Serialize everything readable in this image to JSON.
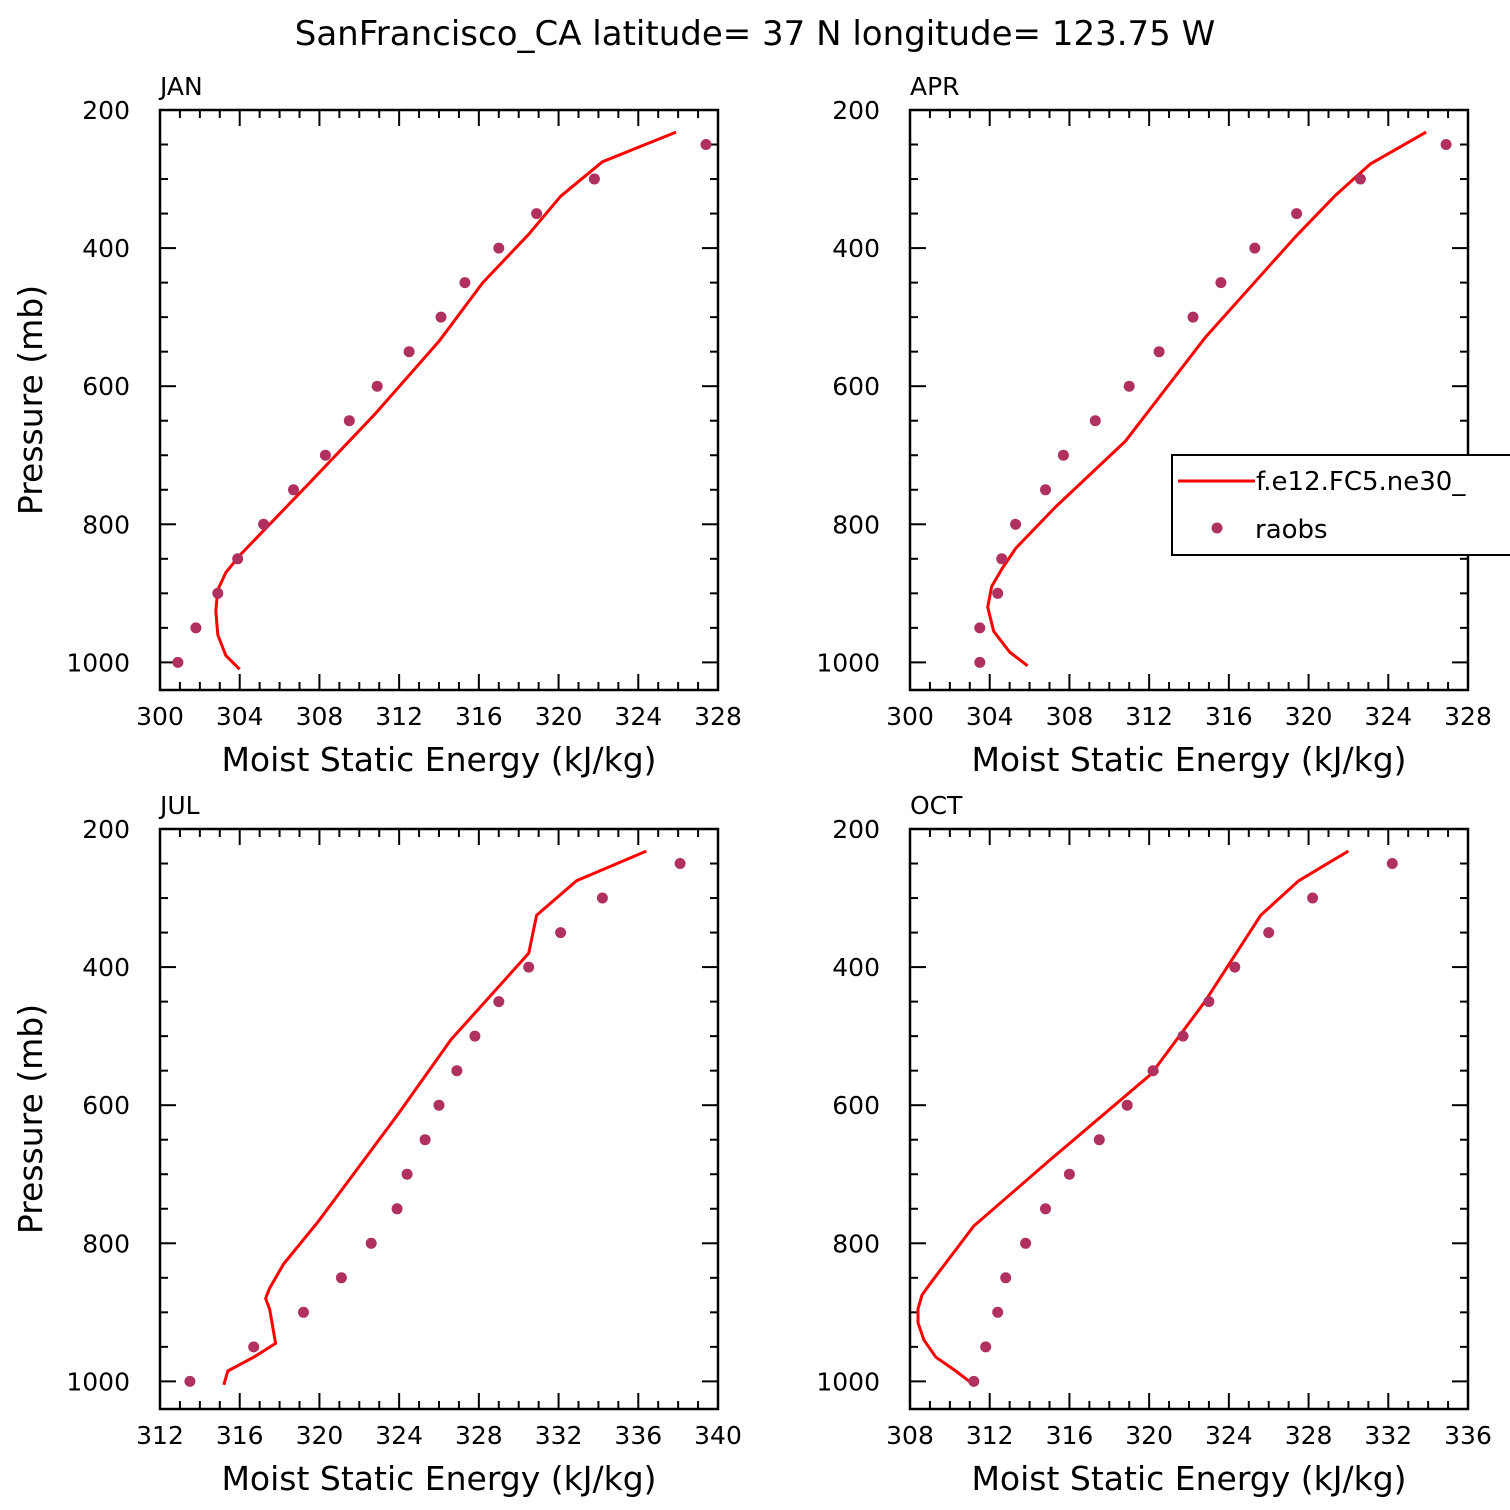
{
  "title": "SanFrancisco_CA  latitude= 37 N longitude= 123.75 W",
  "colors": {
    "model": "#ff0000",
    "obs": "#b03060",
    "axis": "#000000"
  },
  "legend": {
    "model_label": "f.e12.FC5.ne30_",
    "obs_label": "raobs",
    "placement": "right, within APR panel"
  },
  "chart_data": [
    {
      "type": "line",
      "panel_title": "JAN",
      "xlabel": "Moist Static Energy (kJ/kg)",
      "ylabel": "Pressure (mb)",
      "xlim": [
        300,
        328
      ],
      "ylim": [
        200,
        1040
      ],
      "y_inverted": true,
      "xticks": [
        "300",
        "304",
        "308",
        "312",
        "316",
        "320",
        "324",
        "328"
      ],
      "yticks": [
        "200",
        "400",
        "600",
        "800",
        "1000"
      ],
      "series": [
        {
          "name": "f.e12.FC5.ne30_",
          "kind": "line",
          "x": [
            304.0,
            303.3,
            302.9,
            302.8,
            302.9,
            303.3,
            304.0,
            307.5,
            310.8,
            314.0,
            316.2,
            318.5,
            320.1,
            322.2,
            325.9
          ],
          "y": [
            1010,
            990,
            960,
            925,
            895,
            870,
            845,
            740,
            640,
            535,
            450,
            380,
            325,
            275,
            232
          ]
        },
        {
          "name": "raobs",
          "kind": "scatter",
          "x": [
            300.9,
            301.8,
            302.9,
            303.9,
            305.2,
            306.7,
            308.3,
            309.5,
            310.9,
            312.5,
            314.1,
            315.3,
            317.0,
            318.9,
            321.8,
            327.4
          ],
          "y": [
            1000,
            950,
            900,
            850,
            800,
            750,
            700,
            650,
            600,
            550,
            500,
            450,
            400,
            350,
            300,
            250
          ]
        }
      ]
    },
    {
      "type": "line",
      "panel_title": "APR",
      "xlabel": "Moist Static Energy (kJ/kg)",
      "ylabel": "",
      "xlim": [
        300,
        328
      ],
      "ylim": [
        200,
        1040
      ],
      "y_inverted": true,
      "xticks": [
        "300",
        "304",
        "308",
        "312",
        "316",
        "320",
        "324",
        "328"
      ],
      "yticks": [
        "200",
        "400",
        "600",
        "800",
        "1000"
      ],
      "series": [
        {
          "name": "f.e12.FC5.ne30_",
          "kind": "line",
          "x": [
            305.9,
            305.0,
            304.2,
            303.9,
            304.1,
            304.6,
            305.3,
            307.3,
            310.8,
            314.8,
            319.3,
            321.3,
            323.1,
            325.9
          ],
          "y": [
            1005,
            985,
            955,
            920,
            890,
            865,
            835,
            775,
            680,
            530,
            385,
            325,
            278,
            232
          ]
        },
        {
          "name": "raobs",
          "kind": "scatter",
          "x": [
            303.5,
            303.5,
            304.4,
            304.6,
            305.3,
            306.8,
            307.7,
            309.3,
            311.0,
            312.5,
            314.2,
            315.6,
            317.3,
            319.4,
            322.6,
            326.9
          ],
          "y": [
            1000,
            950,
            900,
            850,
            800,
            750,
            700,
            650,
            600,
            550,
            500,
            450,
            400,
            350,
            300,
            250
          ]
        }
      ]
    },
    {
      "type": "line",
      "panel_title": "JUL",
      "xlabel": "Moist Static Energy (kJ/kg)",
      "ylabel": "Pressure (mb)",
      "xlim": [
        312,
        340
      ],
      "ylim": [
        200,
        1040
      ],
      "y_inverted": true,
      "xticks": [
        "312",
        "316",
        "320",
        "324",
        "328",
        "332",
        "336",
        "340"
      ],
      "yticks": [
        "200",
        "400",
        "600",
        "800",
        "1000"
      ],
      "series": [
        {
          "name": "f.e12.FC5.ne30_",
          "kind": "line",
          "x": [
            315.2,
            315.4,
            316.7,
            317.8,
            317.5,
            317.3,
            317.5,
            318.2,
            319.9,
            323.9,
            326.6,
            330.5,
            330.9,
            332.9,
            336.4
          ],
          "y": [
            1005,
            985,
            965,
            945,
            895,
            880,
            865,
            830,
            770,
            615,
            505,
            380,
            325,
            275,
            232
          ]
        },
        {
          "name": "raobs",
          "kind": "scatter",
          "x": [
            313.5,
            316.7,
            319.2,
            321.1,
            322.6,
            323.9,
            324.4,
            325.3,
            326.0,
            326.9,
            327.8,
            329.0,
            330.5,
            332.1,
            334.2,
            338.1
          ],
          "y": [
            1000,
            950,
            900,
            850,
            800,
            750,
            700,
            650,
            600,
            550,
            500,
            450,
            400,
            350,
            300,
            250
          ]
        }
      ]
    },
    {
      "type": "line",
      "panel_title": "OCT",
      "xlabel": "Moist Static Energy (kJ/kg)",
      "ylabel": "",
      "xlim": [
        308,
        336
      ],
      "ylim": [
        200,
        1040
      ],
      "y_inverted": true,
      "xticks": [
        "308",
        "312",
        "316",
        "320",
        "324",
        "328",
        "332",
        "336"
      ],
      "yticks": [
        "200",
        "400",
        "600",
        "800",
        "1000"
      ],
      "series": [
        {
          "name": "f.e12.FC5.ne30_",
          "kind": "line",
          "x": [
            311.2,
            310.3,
            309.3,
            308.7,
            308.4,
            308.4,
            308.6,
            309.1,
            311.2,
            315.0,
            320.1,
            322.8,
            325.6,
            327.5,
            330.0
          ],
          "y": [
            1005,
            985,
            965,
            940,
            915,
            895,
            875,
            855,
            775,
            680,
            555,
            450,
            325,
            275,
            232
          ]
        },
        {
          "name": "raobs",
          "kind": "scatter",
          "x": [
            311.2,
            311.8,
            312.4,
            312.8,
            313.8,
            314.8,
            316.0,
            317.5,
            318.9,
            320.2,
            321.7,
            323.0,
            324.3,
            326.0,
            328.2,
            332.2
          ],
          "y": [
            1000,
            950,
            900,
            850,
            800,
            750,
            700,
            650,
            600,
            550,
            500,
            450,
            400,
            350,
            300,
            250
          ]
        }
      ]
    }
  ]
}
